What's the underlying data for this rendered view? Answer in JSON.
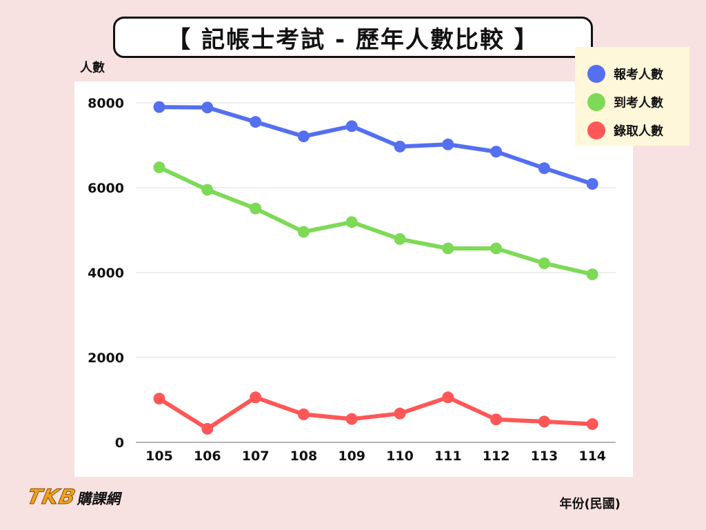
{
  "title": "【 記帳士考試 - 歷年人數比較 】",
  "logo": {
    "brand": "TKB",
    "name": "購課網"
  },
  "colors": {
    "background": "#f8e1e1",
    "plot": "#ffffff",
    "legend_bg": "#fff7d9"
  },
  "chart_data": {
    "type": "line",
    "title": "【 記帳士考試 - 歷年人數比較 】",
    "xlabel": "年份(民國)",
    "ylabel": "人數",
    "categories": [
      "105",
      "106",
      "107",
      "108",
      "109",
      "110",
      "111",
      "112",
      "113",
      "114"
    ],
    "ylim": [
      0,
      8000
    ],
    "yticks": [
      "0",
      "2000",
      "4000",
      "6000",
      "8000"
    ],
    "grid": true,
    "legend_position": "top-right",
    "series": [
      {
        "name": "報考人數",
        "color": "#5470f0",
        "values": [
          7900,
          7890,
          7550,
          7210,
          7450,
          6970,
          7020,
          6850,
          6460,
          6090
        ]
      },
      {
        "name": "到考人數",
        "color": "#7ed957",
        "values": [
          6480,
          5950,
          5510,
          4960,
          5190,
          4790,
          4570,
          4570,
          4220,
          3960
        ]
      },
      {
        "name": "錄取人數",
        "color": "#ff5757",
        "values": [
          1030,
          320,
          1060,
          660,
          550,
          680,
          1060,
          540,
          490,
          430
        ]
      }
    ]
  }
}
